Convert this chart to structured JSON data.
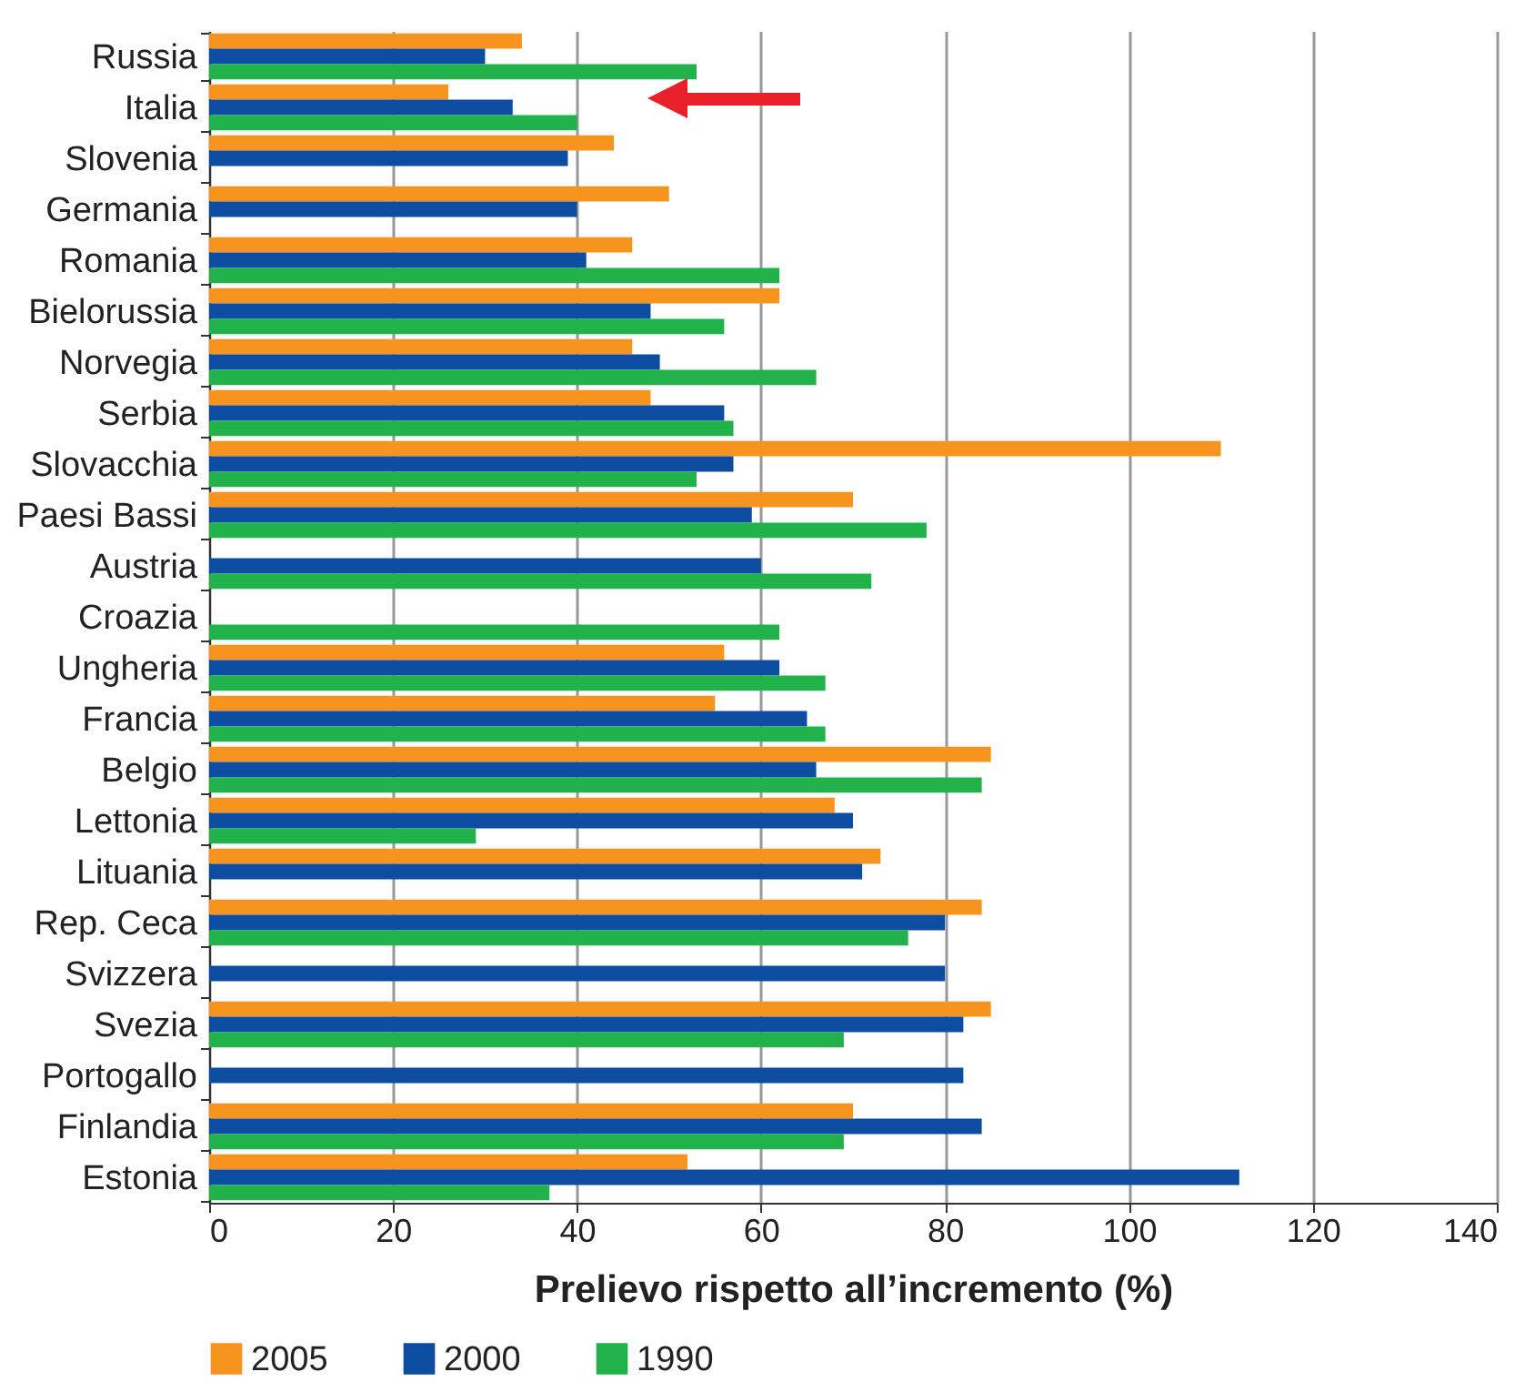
{
  "chart_data": {
    "type": "bar",
    "orientation": "horizontal",
    "xlabel": "Prelievo rispetto all’incremento (%)",
    "categories": [
      "Russia",
      "Italia",
      "Slovenia",
      "Germania",
      "Romania",
      "Bielorussia",
      "Norvegia",
      "Serbia",
      "Slovacchia",
      "Paesi Bassi",
      "Austria",
      "Croazia",
      "Ungheria",
      "Francia",
      "Belgio",
      "Lettonia",
      "Lituania",
      "Rep. Ceca",
      "Svizzera",
      "Svezia",
      "Portogallo",
      "Finlandia",
      "Estonia"
    ],
    "series": [
      {
        "name": "2005",
        "color": "#f7941d",
        "values": [
          34,
          26,
          44,
          50,
          46,
          62,
          46,
          48,
          110,
          70,
          null,
          null,
          56,
          55,
          85,
          68,
          73,
          84,
          null,
          85,
          null,
          70,
          52
        ]
      },
      {
        "name": "2000",
        "color": "#0c4da2",
        "values": [
          30,
          33,
          39,
          40,
          41,
          48,
          49,
          56,
          57,
          59,
          60,
          null,
          62,
          65,
          66,
          70,
          71,
          80,
          80,
          82,
          82,
          84,
          112
        ]
      },
      {
        "name": "1990",
        "color": "#21b24b",
        "values": [
          53,
          40,
          null,
          null,
          62,
          56,
          66,
          57,
          53,
          78,
          72,
          62,
          67,
          67,
          84,
          29,
          null,
          76,
          null,
          69,
          null,
          69,
          37
        ]
      }
    ],
    "xlim": [
      0,
      140
    ],
    "xticks": [
      0,
      20,
      40,
      60,
      80,
      100,
      120,
      140
    ],
    "grid": "x",
    "legend": "bottom"
  }
}
